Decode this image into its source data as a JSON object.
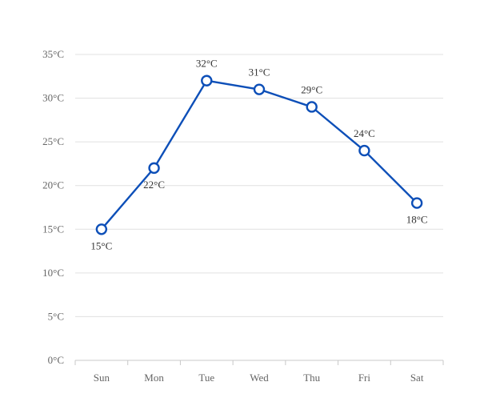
{
  "chart_data": {
    "type": "line",
    "title": "",
    "xlabel": "",
    "ylabel": "",
    "categories": [
      "Sun",
      "Mon",
      "Tue",
      "Wed",
      "Thu",
      "Fri",
      "Sat"
    ],
    "series": [
      {
        "values": [
          15,
          22,
          32,
          31,
          29,
          24,
          18
        ],
        "color": "#0d4fb8"
      }
    ],
    "data_labels": [
      "15°C",
      "22°C",
      "32°C",
      "31°C",
      "29°C",
      "24°C",
      "18°C"
    ],
    "y_ticks": [
      0,
      5,
      10,
      15,
      20,
      25,
      30,
      35
    ],
    "y_tick_labels": [
      "0°C",
      "5°C",
      "10°C",
      "15°C",
      "20°C",
      "25°C",
      "30°C",
      "35°C"
    ],
    "ylim": [
      0,
      35
    ],
    "grid": "horizontal",
    "legend": "none"
  }
}
